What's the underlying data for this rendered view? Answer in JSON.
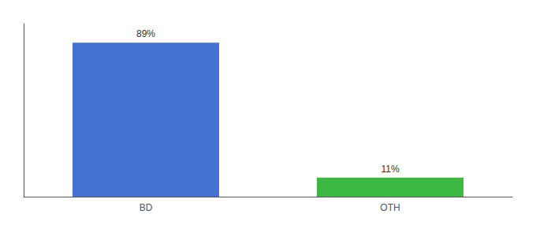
{
  "chart_data": {
    "type": "bar",
    "categories": [
      "BD",
      "OTH"
    ],
    "values": [
      89,
      11
    ],
    "value_labels": [
      "89%",
      "11%"
    ],
    "colors": [
      "#4472d4",
      "#3cb943"
    ],
    "ylim": [
      0,
      100
    ],
    "yticks": [],
    "grid": false,
    "data_labels": true,
    "tick_labels": "x"
  }
}
